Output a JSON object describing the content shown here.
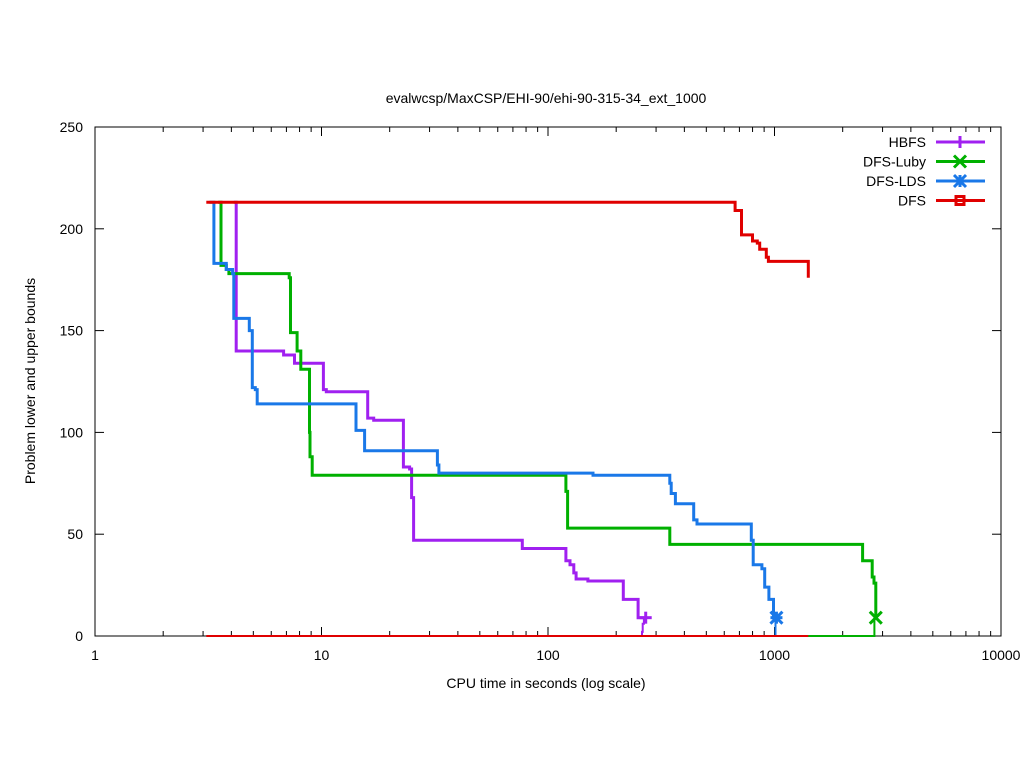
{
  "chart_data": {
    "type": "line",
    "title": "evalwcsp/MaxCSP/EHI-90/ehi-90-315-34_ext_1000",
    "xlabel": "CPU time in seconds (log scale)",
    "ylabel": "Problem lower and upper bounds",
    "xscale": "log",
    "xlim": [
      1,
      10000
    ],
    "ylim": [
      0,
      250
    ],
    "xticks": [
      1,
      10,
      100,
      1000,
      10000
    ],
    "xtick_labels": [
      "1",
      "10",
      "100",
      "1000",
      "10000"
    ],
    "yticks": [
      0,
      50,
      100,
      150,
      200,
      250
    ],
    "ytick_labels": [
      "0",
      "50",
      "100",
      "150",
      "200",
      "250"
    ],
    "legend_position": "top-right",
    "series": [
      {
        "name": "HBFS",
        "color": "#a020f0",
        "marker": "plus",
        "upper": [
          [
            4.1,
            213
          ],
          [
            4.2,
            140
          ],
          [
            6.8,
            138
          ],
          [
            7.6,
            134
          ],
          [
            9.5,
            134
          ],
          [
            10.2,
            121
          ],
          [
            10.5,
            120
          ],
          [
            15.5,
            120
          ],
          [
            16,
            107
          ],
          [
            17,
            106
          ],
          [
            22.5,
            106
          ],
          [
            23,
            83
          ],
          [
            24.5,
            82
          ],
          [
            25,
            68
          ],
          [
            25.5,
            47
          ],
          [
            75,
            47
          ],
          [
            77,
            43
          ],
          [
            118,
            43
          ],
          [
            120,
            37
          ],
          [
            125,
            35
          ],
          [
            130,
            31
          ],
          [
            133,
            28
          ],
          [
            150,
            27
          ],
          [
            210,
            27
          ],
          [
            215,
            18
          ],
          [
            245,
            18
          ],
          [
            250,
            9
          ],
          [
            270,
            9
          ]
        ],
        "lower": [
          [
            4.1,
            0
          ],
          [
            258,
            0
          ],
          [
            260,
            2
          ],
          [
            262,
            6
          ],
          [
            265,
            9
          ]
        ]
      },
      {
        "name": "DFS-Luby",
        "color": "#00b000",
        "marker": "x",
        "upper": [
          [
            3.5,
            213
          ],
          [
            3.6,
            182
          ],
          [
            3.8,
            180
          ],
          [
            3.9,
            178
          ],
          [
            6.9,
            178
          ],
          [
            7.2,
            176
          ],
          [
            7.3,
            149
          ],
          [
            7.8,
            140
          ],
          [
            8.1,
            131
          ],
          [
            8.8,
            131
          ],
          [
            8.85,
            100
          ],
          [
            8.9,
            88
          ],
          [
            9.1,
            79
          ],
          [
            118,
            79
          ],
          [
            120,
            71
          ],
          [
            122,
            53
          ],
          [
            340,
            53
          ],
          [
            345,
            45
          ],
          [
            2400,
            45
          ],
          [
            2450,
            37
          ],
          [
            2650,
            37
          ],
          [
            2700,
            29
          ],
          [
            2750,
            26
          ],
          [
            2800,
            9
          ]
        ],
        "lower": [
          [
            3.5,
            0
          ],
          [
            2700,
            0
          ],
          [
            2760,
            9
          ]
        ]
      },
      {
        "name": "DFS-LDS",
        "color": "#1a78e8",
        "marker": "star",
        "upper": [
          [
            3.2,
            213
          ],
          [
            3.35,
            183
          ],
          [
            3.7,
            183
          ],
          [
            3.8,
            180
          ],
          [
            4.05,
            178
          ],
          [
            4.1,
            156
          ],
          [
            4.7,
            156
          ],
          [
            4.8,
            150
          ],
          [
            4.95,
            122
          ],
          [
            5.1,
            121
          ],
          [
            5.2,
            114
          ],
          [
            14,
            114
          ],
          [
            14.2,
            101
          ],
          [
            15.2,
            101
          ],
          [
            15.5,
            91
          ],
          [
            32,
            91
          ],
          [
            32.5,
            84
          ],
          [
            33,
            80
          ],
          [
            155,
            80
          ],
          [
            158,
            79
          ],
          [
            340,
            79
          ],
          [
            345,
            75
          ],
          [
            350,
            70
          ],
          [
            365,
            65
          ],
          [
            430,
            65
          ],
          [
            440,
            57
          ],
          [
            455,
            55
          ],
          [
            770,
            55
          ],
          [
            790,
            47
          ],
          [
            805,
            35
          ],
          [
            870,
            35
          ],
          [
            880,
            33
          ],
          [
            905,
            24
          ],
          [
            945,
            18
          ],
          [
            990,
            9
          ],
          [
            1020,
            9
          ]
        ],
        "lower": [
          [
            3.2,
            0
          ],
          [
            1005,
            0
          ],
          [
            1010,
            9
          ]
        ]
      },
      {
        "name": "DFS",
        "color": "#e00000",
        "marker": "square",
        "upper": [
          [
            3.1,
            213
          ],
          [
            660,
            213
          ],
          [
            670,
            209
          ],
          [
            700,
            209
          ],
          [
            715,
            197
          ],
          [
            780,
            197
          ],
          [
            800,
            194
          ],
          [
            840,
            193
          ],
          [
            860,
            190
          ],
          [
            905,
            190
          ],
          [
            920,
            186
          ],
          [
            940,
            184
          ],
          [
            1400,
            184
          ],
          [
            1410,
            176
          ]
        ],
        "lower": [
          [
            3.1,
            0
          ],
          [
            1410,
            0
          ]
        ]
      }
    ]
  }
}
